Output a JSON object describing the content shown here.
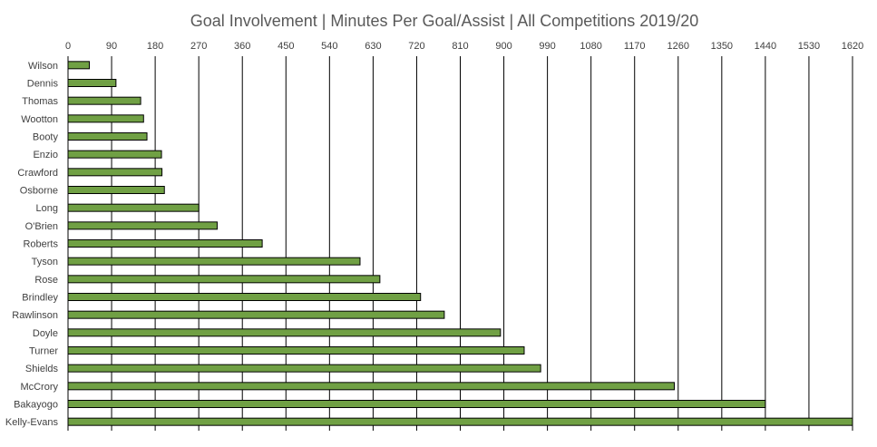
{
  "chart_data": {
    "type": "bar",
    "orientation": "horizontal",
    "title": "Goal Involvement | Minutes Per Goal/Assist | All Competitions 2019/20",
    "xlabel": "",
    "ylabel": "",
    "xlim": [
      0,
      1620
    ],
    "x_ticks": [
      "0",
      "90",
      "180",
      "270",
      "360",
      "450",
      "540",
      "630",
      "720",
      "810",
      "900",
      "990",
      "1080",
      "1170",
      "1260",
      "1350",
      "1440",
      "1530",
      "1620"
    ],
    "x_axis_position": "top",
    "grid": "vertical",
    "legend": "none",
    "bar_color": "#70A044",
    "bar_edge_color": "#000000",
    "categories": [
      "Wilson",
      "Dennis",
      "Thomas",
      "Wootton",
      "Booty",
      "Enzio",
      "Crawford",
      "Osborne",
      "Long",
      "O'Brien",
      "Roberts",
      "Tyson",
      "Rose",
      "Brindley",
      "Rawlinson",
      "Doyle",
      "Turner",
      "Shields",
      "McCrory",
      "Bakayogo",
      "Kelly-Evans"
    ],
    "values": [
      44,
      99,
      150,
      156,
      163,
      193,
      194,
      199,
      270,
      308,
      401,
      603,
      644,
      728,
      777,
      893,
      942,
      976,
      1252,
      1440,
      1620
    ]
  }
}
